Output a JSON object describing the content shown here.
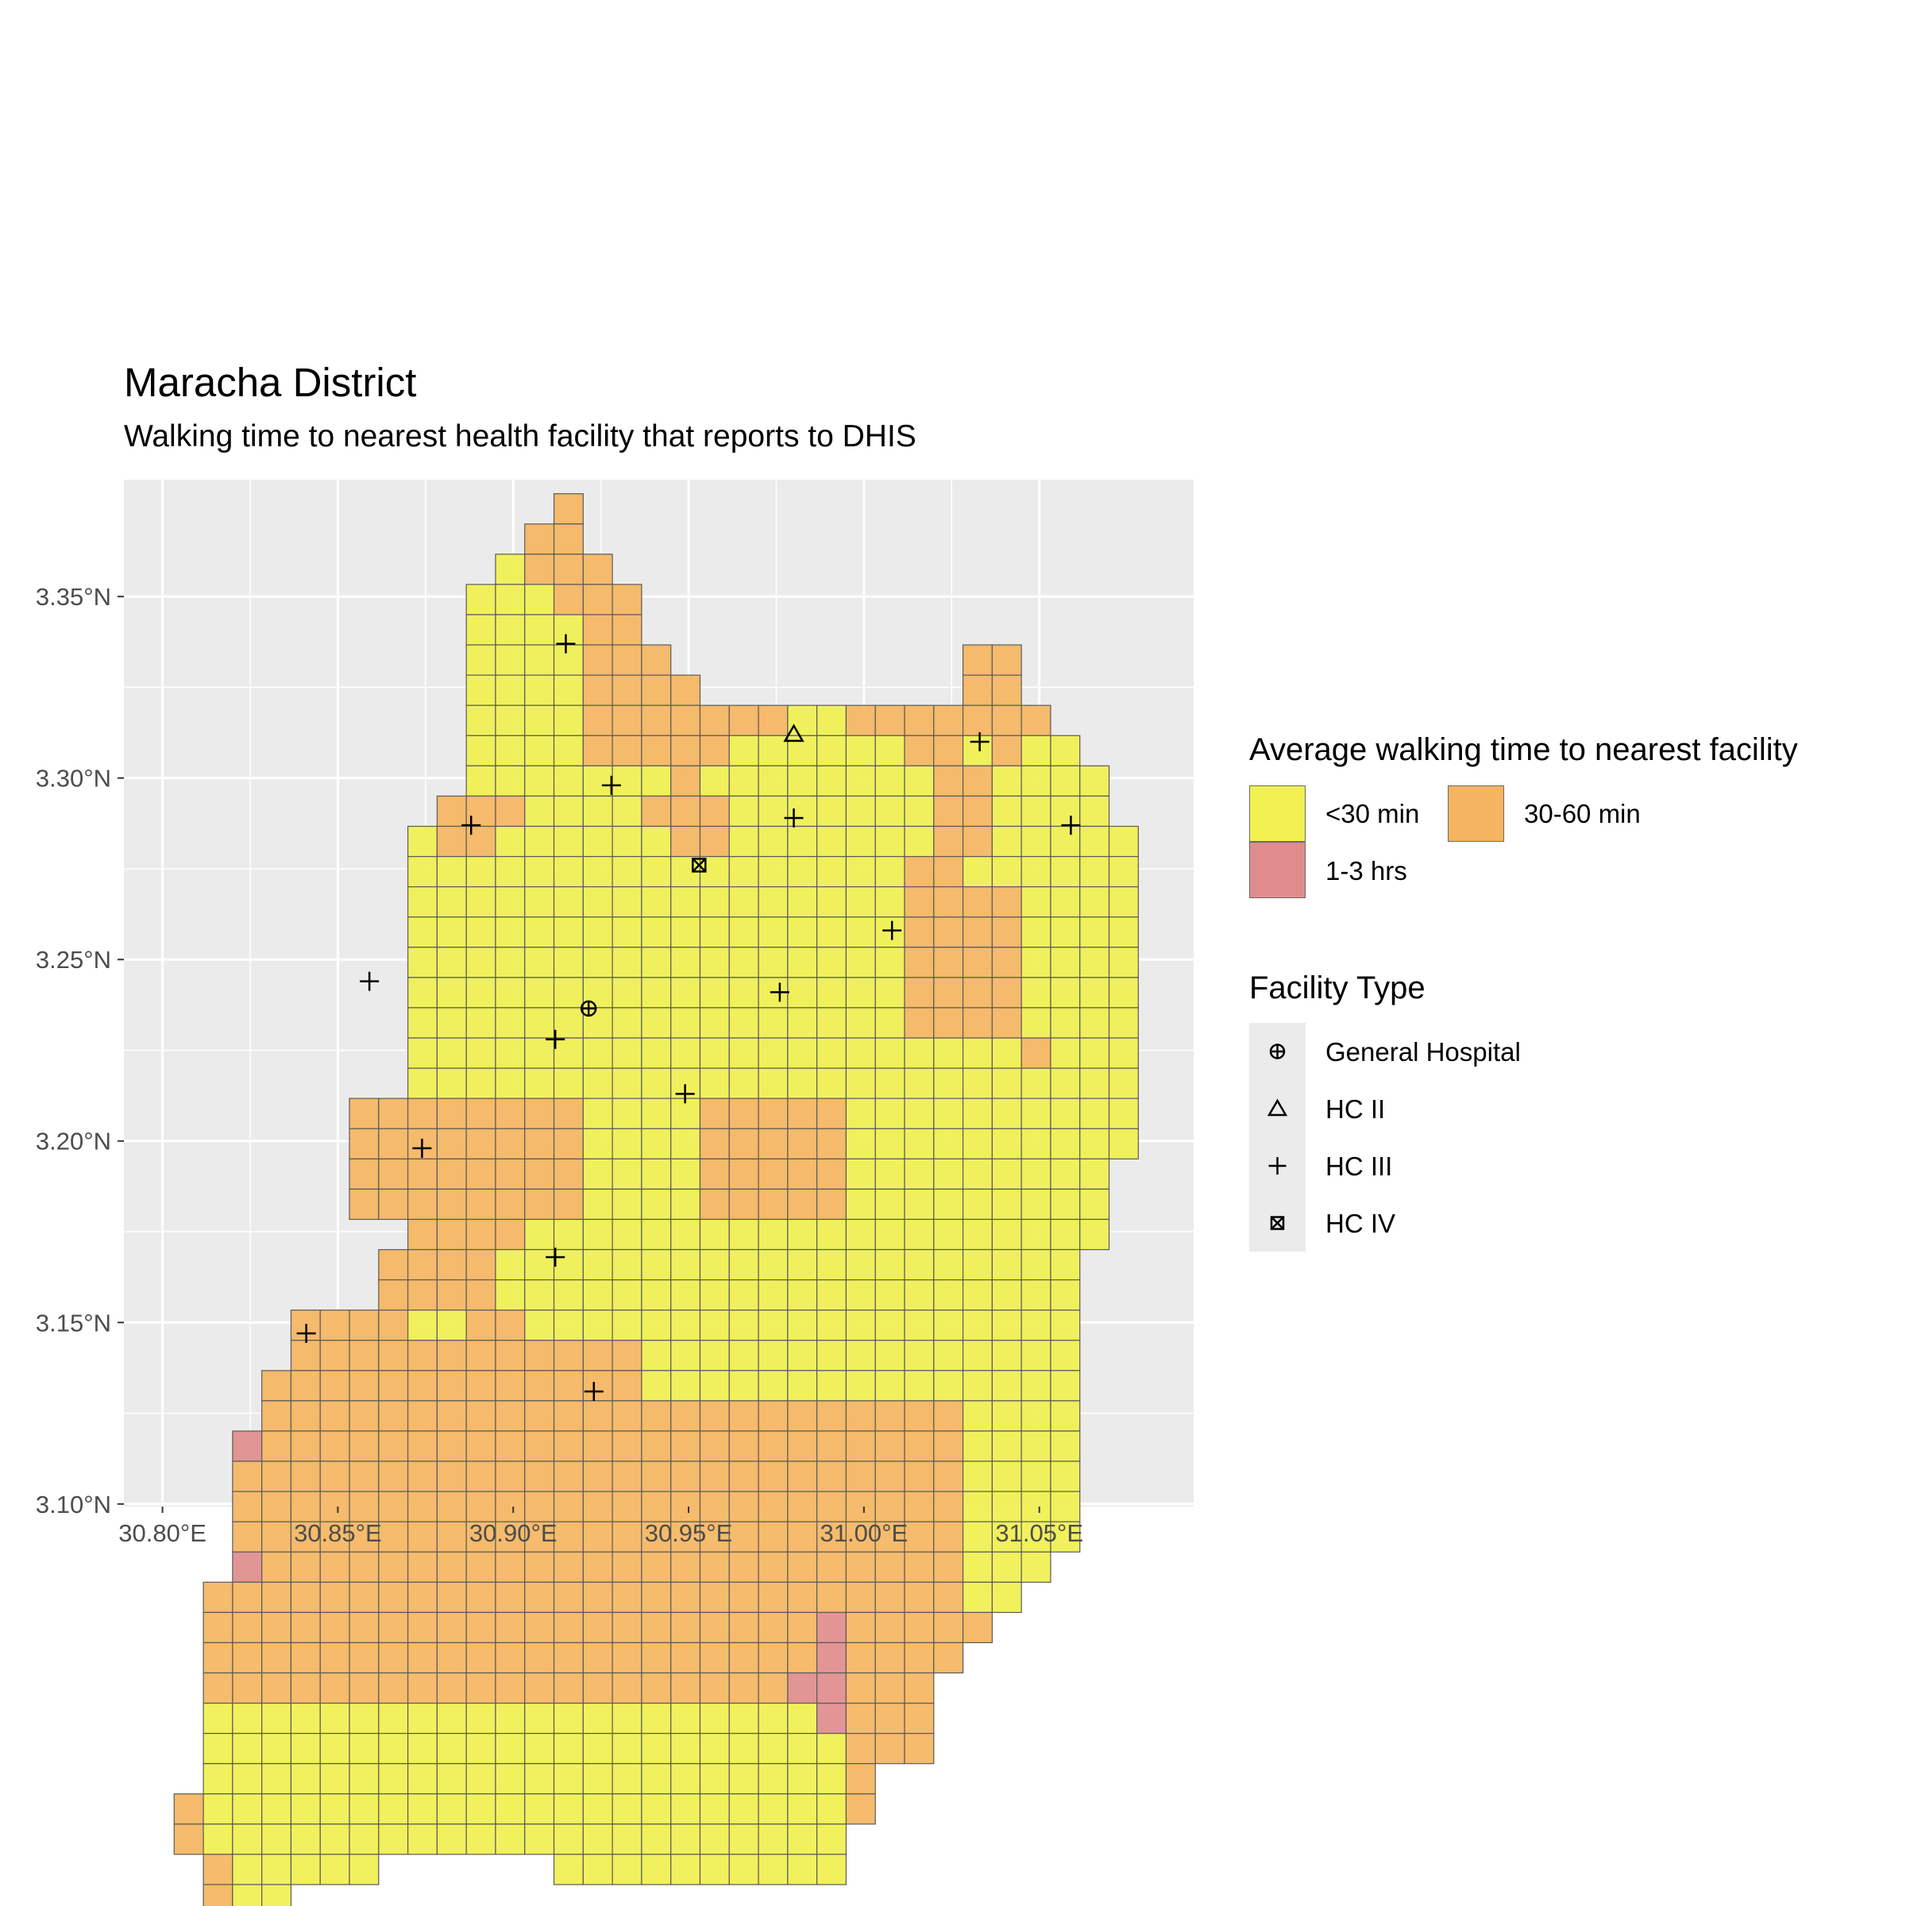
{
  "title": "Maracha District",
  "subtitle": "Walking time to nearest health facility that reports to DHIS",
  "legend_fill": {
    "title": "Average walking time to nearest facility",
    "items": [
      {
        "label": "<30 min",
        "color": "#f0f050"
      },
      {
        "label": "30-60 min",
        "color": "#f5b560"
      },
      {
        "label": "1-3 hrs",
        "color": "#e08c8c"
      }
    ]
  },
  "legend_shape": {
    "title": "Facility Type",
    "items": [
      {
        "label": "General Hospital",
        "icon": "circle-plus-icon"
      },
      {
        "label": "HC II",
        "icon": "triangle-icon"
      },
      {
        "label": "HC III",
        "icon": "plus-icon"
      },
      {
        "label": "HC IV",
        "icon": "square-x-icon"
      }
    ]
  },
  "chart_data": {
    "type": "map",
    "title": "Maracha District",
    "subtitle": "Walking time to nearest health facility that reports to DHIS",
    "grid": true,
    "legend_position": "right",
    "x_axis": {
      "ticks": [
        30.8,
        30.85,
        30.9,
        30.95,
        31.0,
        31.05
      ],
      "labels": [
        "30.80°E",
        "30.85°E",
        "30.90°E",
        "30.95°E",
        "31.00°E",
        "31.05°E"
      ],
      "range": [
        30.789,
        31.094
      ]
    },
    "y_axis": {
      "ticks": [
        3.1,
        3.15,
        3.2,
        3.25,
        3.3,
        3.35
      ],
      "labels": [
        "3.10°N",
        "3.15°N",
        "3.20°N",
        "3.25°N",
        "3.30°N",
        "3.35°N"
      ],
      "range": [
        3.0993,
        3.3822
      ]
    },
    "cell_size": 0.00833,
    "grid_origin": {
      "lon": 30.80333,
      "lat_top": 3.37833
    },
    "categories": {
      "A": "<30 min",
      "B": "30-60 min",
      "C": "1-3 hrs"
    },
    "colors": {
      "A": "#f0f050",
      "B": "#f5b560",
      "C": "#e08c8c"
    },
    "rows": [
      ".............B...................",
      "............BB...................",
      "...........ABBB..................",
      "..........AAABBB.................",
      "..........AAAABB.................",
      "..........AAAABBB..........BB....",
      "..........AAAABBBB.........BB....",
      "..........AAAABBBBBBBAABBBBBBB...",
      "..........AAAABBBBBAAAAAABBABAA..",
      "..........AAAAAAABAAAAAAAABBAAAA.",
      ".........BBBAAAABBBAAAAAAABBAAAA.",
      "........ABBAAAAAABBAAAAAAABBAAAAA",
      "........AAAAAAAAAAAAAAAAABBAAAAAA",
      "........AAAAAAAAAAAAAAAAABBBBAAAA",
      "........AAAAAAAAAAAAAAAAABBBBAAAA",
      "........AAAAAAAAAAAAAAAAABBBBAAAA",
      "........AAAAAAAAAAAAAAAAABBBBAAAA",
      "........AAAAAAAAAAAAAAAAABBBBAAAA",
      "........AAAAAAAAAAAAAAAAAAAAABAAA",
      "........AAAAAAAAAAAAAAAAAAAAAAAAA",
      "......BBBBBBBBAAAABBBBBAAAAAAAAAA",
      "......BBBBBBBBAAAABBBBBAAAAAAAAAA",
      "......BBBBBBBBAAAABBBBBAAAAAAAAA.",
      "......BBBBBBBBAAAABBBBBAAAAAAAAA.",
      "........BBBBAAAAAAAAAAAAAAAAAAAA.",
      ".......BBBBAAAAAAAAAAAAAAAAAAAA..",
      ".......BBBBAAAAAAAAAAAAAAAAAAAA..",
      "....BBBBAABBAAAAAAAAAAAAAAAAAAA..",
      "....BBBBBBBBBBBBAAAAAAAAAAAAAAA..",
      "...BBBBBBBBBBBBBAAAAAAAAAAAAAAA..",
      "...BBBBBBBBBBBBBBBBBBBBBBBBAAAA..",
      "..CBBBBBBBBBBBBBBBBBBBBBBBBAAAA..",
      "..BBBBBBBBBBBBBBBBBBBBBBBBBAAAA..",
      "..BBBBBBBBBBBBBBBBBBBBBBBBBAAAA..",
      "..BBBBBBBBBBBBBBBBBBBBBBBBBAAAA..",
      "..CBBBBBBBBBBBBBBBBBBBBBBBBAAA...",
      ".BBBBBBBBBBBBBBBBBBBBBBBBBBAA....",
      ".BBBBBBBBBBBBBBBBBBBBBCBBBBB.....",
      ".BBBBBBBBBBBBBBBBBBBBBCBBBB......",
      ".BBBBBBBBBBBBBBBBBBBBCCBBB.......",
      ".AAAAAAAAAAAAAAAAAAAAACBBB.......",
      ".AAAAAAAAAAAAAAAAAAAAAABBB.......",
      ".AAAAAAAAAAAAAAAAAAAAAAB.........",
      "BAAAAAAAAAAAAAAAAAAAAAAB.........",
      "BAAAAAAAAAAAAAAAAAAAAAA..........",
      ".BAAAAA......AAAAAAAAAA..........",
      ".BAA............................."
    ],
    "facilities": [
      {
        "type": "General Hospital",
        "lon": 30.9215,
        "lat": 3.2365
      },
      {
        "type": "HC II",
        "lon": 30.98,
        "lat": 3.312
      },
      {
        "type": "HC III",
        "lon": 30.915,
        "lat": 3.337
      },
      {
        "type": "HC III",
        "lon": 30.928,
        "lat": 3.298
      },
      {
        "type": "HC III",
        "lon": 30.888,
        "lat": 3.287
      },
      {
        "type": "HC III",
        "lon": 30.98,
        "lat": 3.289
      },
      {
        "type": "HC III",
        "lon": 31.033,
        "lat": 3.31
      },
      {
        "type": "HC III",
        "lon": 31.059,
        "lat": 3.287
      },
      {
        "type": "HC III",
        "lon": 31.008,
        "lat": 3.258
      },
      {
        "type": "HC III",
        "lon": 30.859,
        "lat": 3.244
      },
      {
        "type": "HC III",
        "lon": 30.976,
        "lat": 3.241
      },
      {
        "type": "HC III",
        "lon": 30.912,
        "lat": 3.228
      },
      {
        "type": "HC III",
        "lon": 30.949,
        "lat": 3.213
      },
      {
        "type": "HC III",
        "lon": 30.874,
        "lat": 3.198
      },
      {
        "type": "HC III",
        "lon": 30.912,
        "lat": 3.168
      },
      {
        "type": "HC III",
        "lon": 30.841,
        "lat": 3.147
      },
      {
        "type": "HC III",
        "lon": 30.923,
        "lat": 3.131
      },
      {
        "type": "HC IV",
        "lon": 30.953,
        "lat": 3.276
      }
    ]
  }
}
